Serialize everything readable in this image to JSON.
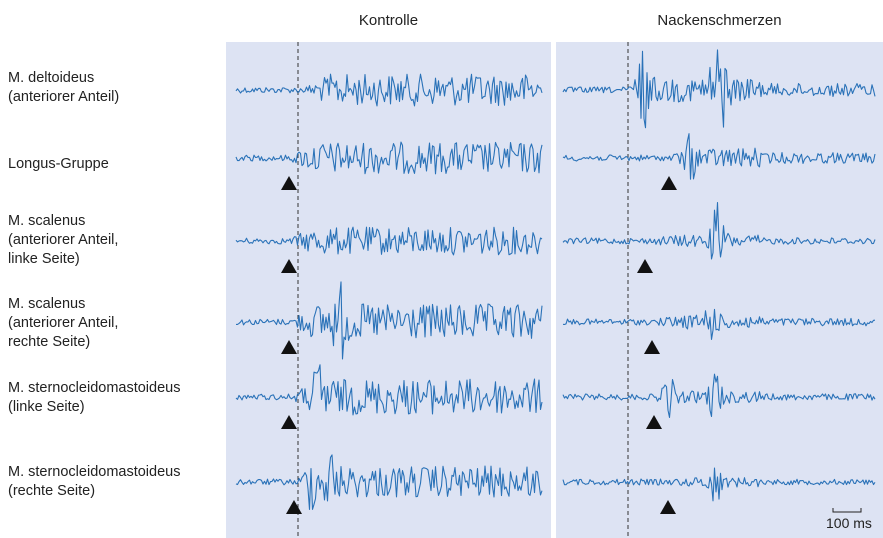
{
  "columns": [
    {
      "title": "Kontrolle"
    },
    {
      "title": "Nackenschmerzen"
    }
  ],
  "rows": [
    {
      "lines": [
        "M. deltoideus",
        "(anteriorer Anteil)"
      ]
    },
    {
      "lines": [
        "Longus-Gruppe"
      ]
    },
    {
      "lines": [
        "M. scalenus",
        "(anteriorer Anteil,",
        "linke Seite)"
      ]
    },
    {
      "lines": [
        "M. scalenus",
        "(anteriorer Anteil,",
        "rechte Seite)"
      ]
    },
    {
      "lines": [
        "M. sternocleidomastoideus",
        "(linke Seite)"
      ]
    },
    {
      "lines": [
        "M. sternocleidomastoideus",
        "(rechte Seite)"
      ]
    }
  ],
  "scale_bar": {
    "label": "100 ms"
  },
  "colors": {
    "trace": "#2a72b8",
    "panel": "#dde3f3",
    "marker": "#111111"
  },
  "onset_markers": {
    "Kontrolle": [
      null,
      "present",
      "present",
      "present",
      "present",
      "present"
    ],
    "Nackenschmerzen": [
      null,
      "present",
      "present",
      "present",
      "present",
      "present"
    ]
  }
}
